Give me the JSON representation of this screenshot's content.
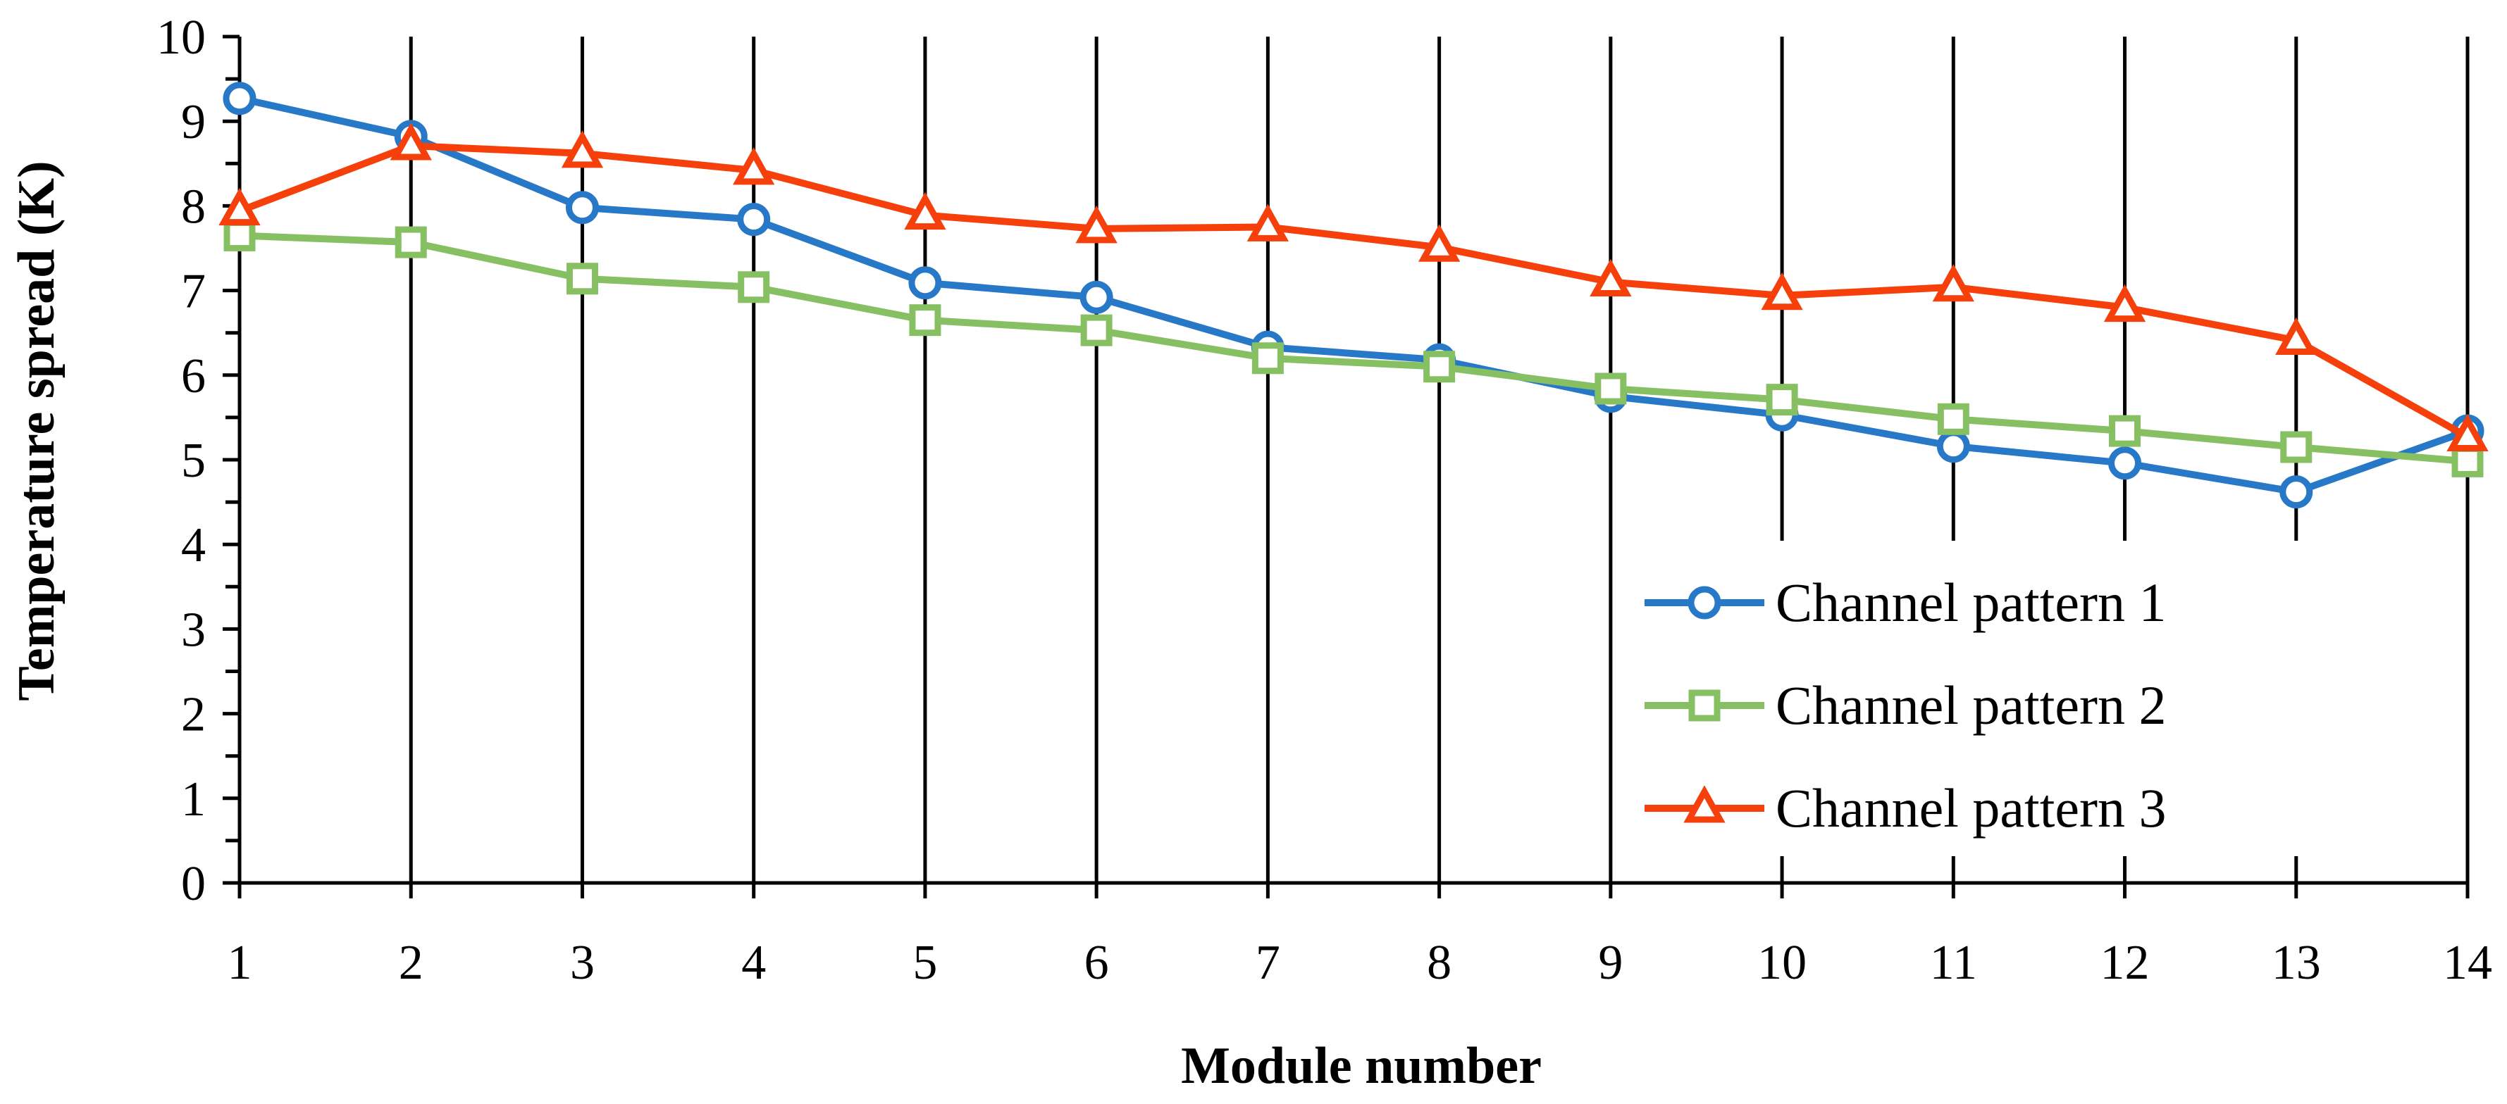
{
  "chart_data": {
    "type": "line",
    "title": "",
    "xlabel": "Module number",
    "ylabel": "Temperature spread (K)",
    "categories": [
      1,
      2,
      3,
      4,
      5,
      6,
      7,
      8,
      9,
      10,
      11,
      12,
      13,
      14
    ],
    "x_tick_labels": [
      "1",
      "2",
      "3",
      "4",
      "5",
      "6",
      "7",
      "8",
      "9",
      "10",
      "11",
      "12",
      "13",
      "14"
    ],
    "y_tick_labels": [
      "0",
      "1",
      "2",
      "3",
      "4",
      "5",
      "6",
      "7",
      "8",
      "9",
      "10"
    ],
    "ylim": [
      0,
      10
    ],
    "y_step": 1,
    "y_minor_step": 0.5,
    "grid": {
      "vertical": true,
      "horizontal": false
    },
    "legend_position": "bottom-right",
    "series": [
      {
        "name": "Channel pattern 1",
        "color": "#2878c8",
        "marker": "circle",
        "values": [
          9.27,
          8.82,
          7.98,
          7.84,
          7.09,
          6.92,
          6.33,
          6.18,
          5.75,
          5.53,
          5.16,
          4.96,
          4.62,
          5.34
        ]
      },
      {
        "name": "Channel pattern 2",
        "color": "#86c063",
        "marker": "square",
        "values": [
          7.65,
          7.57,
          7.14,
          7.04,
          6.65,
          6.53,
          6.2,
          6.1,
          5.84,
          5.71,
          5.48,
          5.34,
          5.15,
          4.98
        ]
      },
      {
        "name": "Channel pattern 3",
        "color": "#f5400c",
        "marker": "triangle",
        "values": [
          7.94,
          8.71,
          8.62,
          8.42,
          7.89,
          7.73,
          7.75,
          7.51,
          7.1,
          6.94,
          7.04,
          6.8,
          6.41,
          5.27
        ]
      }
    ]
  }
}
